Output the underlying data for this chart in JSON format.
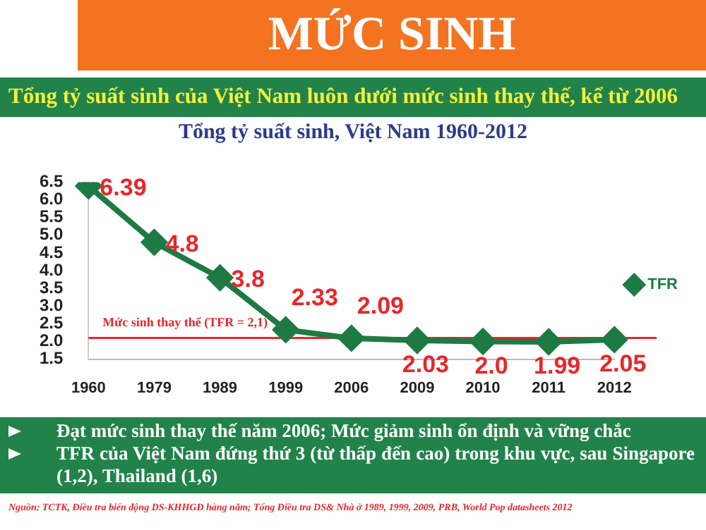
{
  "chart_data": {
    "type": "line",
    "title": "MỨC SINH",
    "subtitle": "Tổng tỷ suất sinh của Việt Nam  luôn dưới mức sinh thay thế, kể từ 2006",
    "annotations": [
      "Tổng tỷ suất sinh, Việt Nam 1960-2012",
      "Đạt mức sinh thay thế năm 2006; Mức giảm sinh ổn định và vững chắc",
      "TFR của Việt Nam đứng thứ 3 (từ thấp đến cao) trong khu vực, sau Singapore (1,2), Thailand (1,6)",
      "Nguồn:  TCTK, Điều tra biến động DS-KHHGĐ hàng năm; Tổng Điều tra DS& Nhà ở 1989, 1999, 2009, PRB, World Pop datasheets 2012"
    ],
    "categories": [
      "1960",
      "1979",
      "1989",
      "1999",
      "2006",
      "2009",
      "2010",
      "2011",
      "2012"
    ],
    "series": [
      {
        "name": "TFR",
        "color": "#1d7a43",
        "values": [
          6.39,
          4.8,
          3.8,
          2.33,
          2.09,
          2.03,
          2.0,
          1.99,
          2.05
        ],
        "value_labels": [
          "6.39",
          "4.8",
          "3.8",
          "2.33",
          "2.09",
          "2.03",
          "2.0",
          "1.99",
          "2.05"
        ]
      }
    ],
    "ylim": [
      1.5,
      6.5
    ],
    "yticks": [
      1.5,
      {
        "value": 2,
        "label": "2.0"
      },
      2.5,
      {
        "value": 3,
        "label": "3.0"
      },
      3.5,
      {
        "value": 4,
        "label": "4.0"
      },
      4.5,
      {
        "value": 5,
        "label": "5.0"
      },
      5.5,
      {
        "value": 6,
        "label": "6.0"
      },
      6.5
    ],
    "ref_lines": [
      {
        "axis": "y",
        "value": 2.1,
        "label": "Mức sinh thay thế (TFR = 2,1)",
        "color": "#e8262a"
      }
    ],
    "legend": "right",
    "marker": "diamond",
    "line_style": "solid",
    "grid": false
  }
}
